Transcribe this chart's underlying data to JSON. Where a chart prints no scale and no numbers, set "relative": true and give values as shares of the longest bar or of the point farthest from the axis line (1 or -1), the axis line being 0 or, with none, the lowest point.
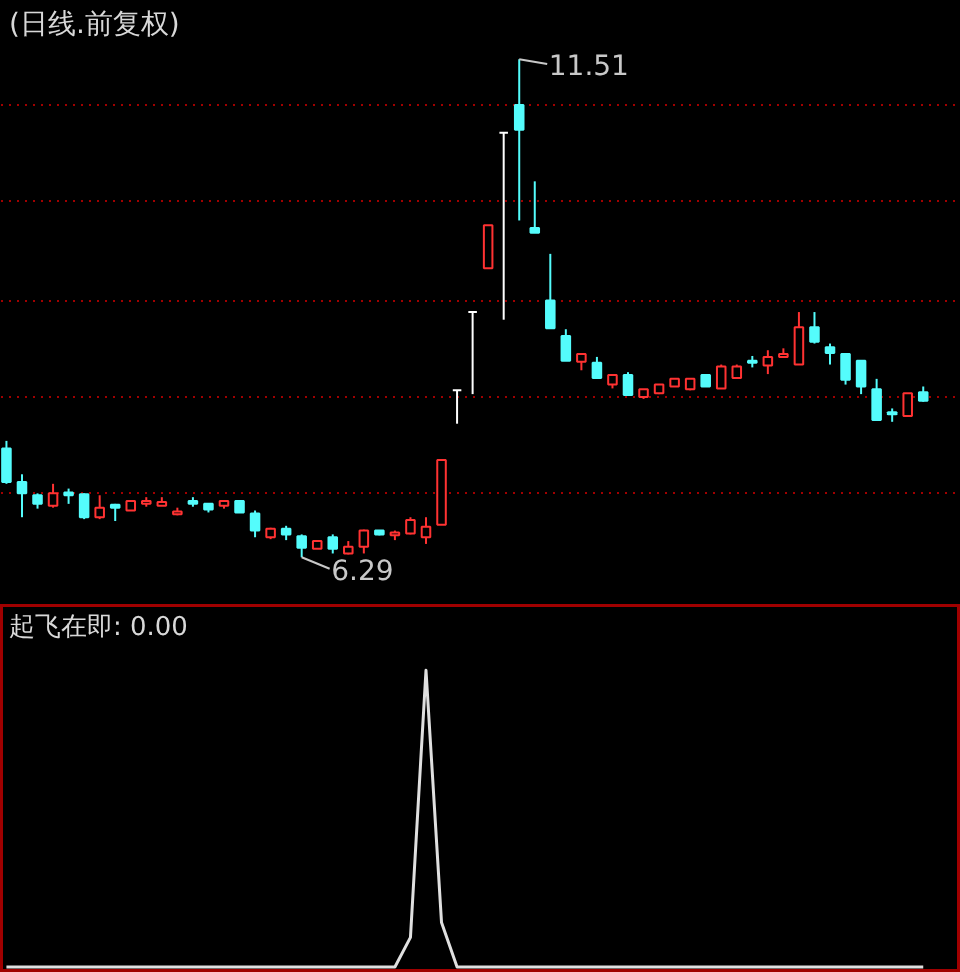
{
  "chart_data": [
    {
      "type": "candlestick",
      "title": "(日线.前复权)",
      "categories": [
        null,
        null,
        null,
        null,
        null,
        null,
        null,
        null,
        null,
        null,
        null,
        null,
        null,
        null,
        null,
        null,
        null,
        null,
        null,
        null,
        null,
        null,
        null,
        null,
        null,
        null,
        null,
        null,
        null,
        null,
        null,
        null,
        null,
        null,
        null,
        null,
        null,
        null,
        null,
        null,
        null,
        null,
        null,
        null,
        null,
        null,
        null,
        null,
        null,
        null,
        null,
        null,
        null,
        null,
        null,
        null,
        null,
        null,
        null,
        null
      ],
      "ohlc": [
        [
          7.43,
          7.51,
          7.06,
          7.08
        ],
        [
          7.08,
          7.16,
          6.71,
          6.96
        ],
        [
          6.94,
          6.96,
          6.8,
          6.85
        ],
        [
          6.83,
          7.06,
          6.81,
          6.96
        ],
        [
          6.97,
          7.01,
          6.85,
          6.94
        ],
        [
          6.95,
          6.96,
          6.69,
          6.71
        ],
        [
          6.71,
          6.94,
          6.69,
          6.81
        ],
        [
          6.84,
          6.85,
          6.67,
          6.81
        ],
        [
          6.78,
          6.88,
          6.78,
          6.88
        ],
        [
          6.85,
          6.92,
          6.82,
          6.88
        ],
        [
          6.83,
          6.92,
          6.83,
          6.87
        ],
        [
          6.74,
          6.81,
          6.73,
          6.77
        ],
        [
          6.88,
          6.92,
          6.82,
          6.85
        ],
        [
          6.85,
          6.85,
          6.76,
          6.79
        ],
        [
          6.83,
          6.88,
          6.8,
          6.88
        ],
        [
          6.88,
          6.88,
          6.76,
          6.76
        ],
        [
          6.75,
          6.78,
          6.5,
          6.57
        ],
        [
          6.5,
          6.6,
          6.48,
          6.59
        ],
        [
          6.59,
          6.62,
          6.47,
          6.53
        ],
        [
          6.51,
          6.53,
          6.29,
          6.39
        ],
        [
          6.38,
          6.47,
          6.38,
          6.46
        ],
        [
          6.5,
          6.53,
          6.33,
          6.38
        ],
        [
          6.33,
          6.46,
          6.32,
          6.4
        ],
        [
          6.4,
          6.58,
          6.33,
          6.57
        ],
        [
          6.57,
          6.57,
          6.52,
          6.53
        ],
        [
          6.52,
          6.57,
          6.47,
          6.55
        ],
        [
          6.54,
          6.71,
          6.53,
          6.68
        ],
        [
          6.5,
          6.71,
          6.43,
          6.61
        ],
        [
          6.63,
          7.31,
          6.63,
          7.31
        ],
        [
          8.04,
          8.04,
          7.69,
          8.04
        ],
        [
          8.86,
          8.86,
          8.0,
          8.86
        ],
        [
          9.32,
          9.77,
          9.32,
          9.77
        ],
        [
          10.74,
          10.74,
          8.78,
          10.74
        ],
        [
          11.03,
          11.51,
          9.82,
          10.77
        ],
        [
          9.74,
          10.23,
          9.69,
          9.69
        ],
        [
          8.98,
          9.47,
          8.69,
          8.69
        ],
        [
          8.61,
          8.68,
          8.35,
          8.35
        ],
        [
          8.34,
          8.42,
          8.25,
          8.42
        ],
        [
          8.33,
          8.39,
          8.17,
          8.17
        ],
        [
          8.1,
          8.2,
          8.06,
          8.2
        ],
        [
          8.2,
          8.23,
          7.99,
          7.99
        ],
        [
          7.97,
          8.05,
          7.95,
          8.05
        ],
        [
          8.01,
          8.1,
          8.0,
          8.1
        ],
        [
          8.08,
          8.16,
          8.08,
          8.16
        ],
        [
          8.05,
          8.16,
          8.04,
          8.16
        ],
        [
          8.2,
          8.2,
          8.08,
          8.08
        ],
        [
          8.06,
          8.31,
          8.06,
          8.29
        ],
        [
          8.17,
          8.31,
          8.17,
          8.29
        ],
        [
          8.35,
          8.4,
          8.28,
          8.33
        ],
        [
          8.3,
          8.46,
          8.21,
          8.39
        ],
        [
          8.39,
          8.48,
          8.39,
          8.42
        ],
        [
          8.31,
          8.86,
          8.31,
          8.7
        ],
        [
          8.7,
          8.86,
          8.53,
          8.55
        ],
        [
          8.49,
          8.53,
          8.31,
          8.43
        ],
        [
          8.42,
          8.42,
          8.1,
          8.15
        ],
        [
          8.35,
          8.35,
          8.0,
          8.08
        ],
        [
          8.05,
          8.16,
          7.72,
          7.73
        ],
        [
          7.81,
          7.85,
          7.71,
          7.79
        ],
        [
          7.77,
          8.01,
          7.77,
          8.01
        ],
        [
          8.02,
          8.08,
          7.92,
          7.93
        ]
      ],
      "colors": [
        "#54fcfc",
        "#54fcfc",
        "#54fcfc",
        "#ff3232",
        "#54fcfc",
        "#54fcfc",
        "#ff3232",
        "#54fcfc",
        "#ff3232",
        "#ff3232",
        "#ff3232",
        "#ff3232",
        "#54fcfc",
        "#54fcfc",
        "#ff3232",
        "#54fcfc",
        "#54fcfc",
        "#ff3232",
        "#54fcfc",
        "#54fcfc",
        "#ff3232",
        "#54fcfc",
        "#ff3232",
        "#ff3232",
        "#54fcfc",
        "#ff3232",
        "#ff3232",
        "#ff3232",
        "#ff3232",
        "#ffffff",
        "#ffffff",
        "#ff3232",
        "#ffffff",
        "#54fcfc",
        "#54fcfc",
        "#54fcfc",
        "#54fcfc",
        "#ff3232",
        "#54fcfc",
        "#ff3232",
        "#54fcfc",
        "#ff3232",
        "#ff3232",
        "#ff3232",
        "#ff3232",
        "#54fcfc",
        "#ff3232",
        "#ff3232",
        "#54fcfc",
        "#ff3232",
        "#ff3232",
        "#ff3232",
        "#54fcfc",
        "#54fcfc",
        "#54fcfc",
        "#54fcfc",
        "#54fcfc",
        "#54fcfc",
        "#ff3232",
        "#54fcfc"
      ],
      "ylim": [
        5.79,
        12.12
      ],
      "yticks": [
        {
          "value": 6.97,
          "label": null
        },
        {
          "value": 7.97,
          "label": null
        },
        {
          "value": 8.98,
          "label": null
        },
        {
          "value": 10.03,
          "label": null
        },
        {
          "value": 11.03,
          "label": null
        }
      ],
      "grid": "y",
      "tick_labels": false,
      "annotations": [
        "11.51",
        "6.29"
      ]
    },
    {
      "type": "line",
      "title": "起飞在即: 0.00",
      "relative": true,
      "tick_labels": false,
      "categories": [
        null,
        null,
        null,
        null,
        null,
        null,
        null,
        null,
        null,
        null,
        null,
        null,
        null,
        null,
        null,
        null,
        null,
        null,
        null,
        null,
        null,
        null,
        null,
        null,
        null,
        null,
        null,
        null,
        null,
        null,
        null,
        null,
        null,
        null,
        null,
        null,
        null,
        null,
        null,
        null,
        null,
        null,
        null,
        null,
        null,
        null,
        null,
        null,
        null,
        null,
        null,
        null,
        null,
        null,
        null,
        null,
        null,
        null,
        null,
        null
      ],
      "series": [
        {
          "color": "#e0e0e0",
          "values": [
            0,
            0,
            0,
            0,
            0,
            0,
            0,
            0,
            0,
            0,
            0,
            0,
            0,
            0,
            0,
            0,
            0,
            0,
            0,
            0,
            0,
            0,
            0,
            0,
            0,
            0,
            0.1,
            1,
            0.15,
            0,
            0,
            0,
            0,
            0,
            0,
            0,
            0,
            0,
            0,
            0,
            0,
            0,
            0,
            0,
            0,
            0,
            0,
            0,
            0,
            0,
            0,
            0,
            0,
            0,
            0,
            0,
            0,
            0,
            0,
            0
          ]
        }
      ]
    }
  ]
}
